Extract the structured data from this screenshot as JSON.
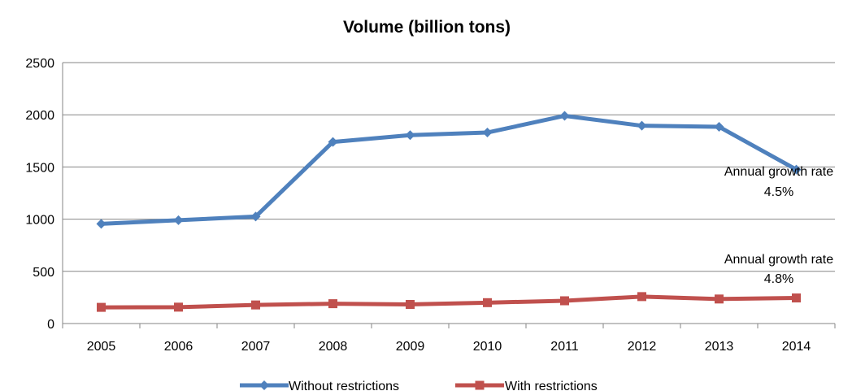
{
  "chart_data": {
    "type": "line",
    "title": "Volume (billion tons)",
    "xlabel": "",
    "ylabel": "",
    "categories": [
      "2005",
      "2006",
      "2007",
      "2008",
      "2009",
      "2010",
      "2011",
      "2012",
      "2013",
      "2014"
    ],
    "ylim": [
      0,
      2500
    ],
    "yticks": [
      "0",
      "500",
      "1000",
      "1500",
      "2000",
      "2500"
    ],
    "grid": "horizontal",
    "legend_position": "bottom",
    "series": [
      {
        "name": "Without restrictions",
        "color": "#4f81bd",
        "marker": "diamond",
        "values": [
          955,
          990,
          1025,
          1740,
          1805,
          1830,
          1990,
          1895,
          1885,
          1475
        ]
      },
      {
        "name": "With restrictions",
        "color": "#c0504d",
        "marker": "square",
        "values": [
          155,
          157,
          178,
          190,
          183,
          200,
          218,
          258,
          235,
          245
        ]
      }
    ],
    "annotations": [
      {
        "line1": "Annual growth rate",
        "line2": "4.5%",
        "series": "Without restrictions"
      },
      {
        "line1": "Annual growth rate",
        "line2": "4.8%",
        "series": "With restrictions"
      }
    ]
  }
}
